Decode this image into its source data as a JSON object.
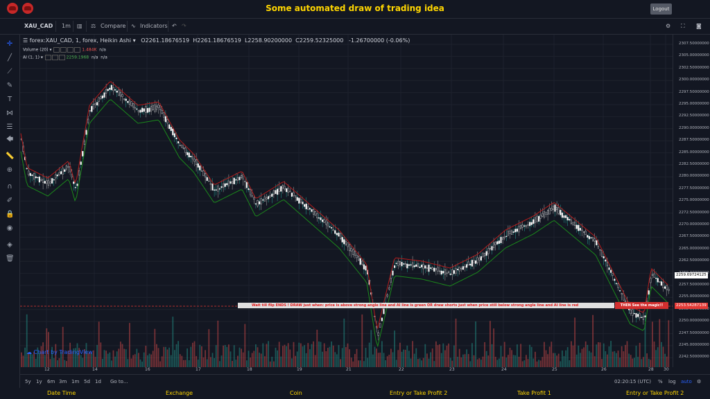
{
  "header": {
    "title": "Some automated draw of trading idea",
    "logout_label": "Logout"
  },
  "toolbar": {
    "symbol": "XAU_CAD",
    "interval": "1m",
    "compare_label": "Compare",
    "indicators_label": "Indicators"
  },
  "legend": {
    "main": "forex:XAU_CAD, 1, forex, Heikin Ashi",
    "o": "O2261.18676519",
    "h": "H2261.18676519",
    "l": "L2258.90200000",
    "c": "C2259.52325000",
    "change": "-1.26700000 (-0.06%)",
    "volume_label": "Volume (20)",
    "volume_value": "1.484K",
    "volume_na": "n/a",
    "ai_label": "AI (1, 1)",
    "ai_value": "2259.1968",
    "ai_na1": "n/a",
    "ai_na2": "n/a"
  },
  "price_axis": [
    "2307.50000000",
    "2305.00000000",
    "2302.50000000",
    "2300.00000000",
    "2297.50000000",
    "2295.00000000",
    "2292.50000000",
    "2290.00000000",
    "2287.50000000",
    "2285.00000000",
    "2282.50000000",
    "2280.00000000",
    "2277.50000000",
    "2275.00000000",
    "2272.50000000",
    "2270.00000000",
    "2267.50000000",
    "2265.00000000",
    "2262.50000000",
    "2260.00000000",
    "2257.50000000",
    "2255.00000000",
    "2252.50000000",
    "2250.00000000",
    "2247.50000000",
    "2245.00000000",
    "2242.50000000"
  ],
  "current_price": "2259.69724125",
  "line_price": "2253.54287139",
  "x_axis": [
    "12",
    "14",
    "16",
    "17",
    "18",
    "19",
    "21",
    "22",
    "23",
    "24",
    "25",
    "26",
    "28",
    "30"
  ],
  "banner": {
    "text": "Wait till flip ENDS !   DRAW just when:  price is above strong angle line and AI line is green        OR        draw shorts just when price still below strong angle line and AI line is red",
    "cta": "THEN See the magic!!"
  },
  "watermark": "Chart by TradingView",
  "bottom": {
    "ranges": [
      "5y",
      "1y",
      "6m",
      "3m",
      "1m",
      "5d",
      "1d"
    ],
    "goto": "Go to...",
    "time": "02:20:15 (UTC)",
    "pct": "%",
    "log": "log",
    "auto": "auto"
  },
  "footer": [
    "Date Time",
    "Exchange",
    "Coin",
    "Entry or Take Profit 2",
    "Take Profit 1",
    "Entry or Take Profit 2"
  ],
  "colors": {
    "up": "#26a69a",
    "down": "#ef5350",
    "ai_green": "#1b8a1b",
    "ai_red": "#b71c1c",
    "accent": "#ffd600"
  },
  "icons": {
    "logout": "logout",
    "settings": "gear-icon",
    "fullscreen": "fullscreen-icon",
    "snapshot": "camera-icon"
  }
}
